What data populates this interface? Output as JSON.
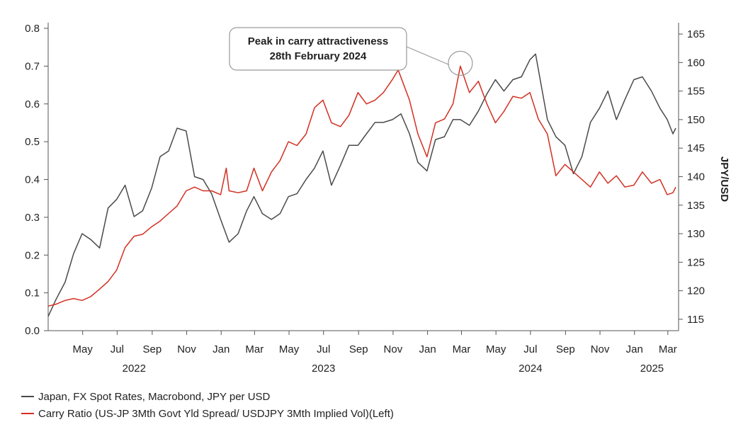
{
  "chart_data": {
    "type": "line",
    "xlabel": "",
    "ylabel_left": "",
    "ylabel_right": "JPY/USD",
    "ylim_left": [
      0,
      0.8
    ],
    "ylim_right": [
      113,
      166
    ],
    "yticks_left": [
      "0.0",
      "0.1",
      "0.2",
      "0.3",
      "0.4",
      "0.5",
      "0.6",
      "0.7",
      "0.8"
    ],
    "yticks_right": [
      "115",
      "120",
      "125",
      "130",
      "135",
      "140",
      "145",
      "150",
      "155",
      "160",
      "165"
    ],
    "xlim": [
      "2022-03-01",
      "2025-03-20"
    ],
    "month_ticks": [
      {
        "label": "May",
        "date": "2022-05-01"
      },
      {
        "label": "Jul",
        "date": "2022-07-01"
      },
      {
        "label": "Sep",
        "date": "2022-09-01"
      },
      {
        "label": "Nov",
        "date": "2022-11-01"
      },
      {
        "label": "Jan",
        "date": "2023-01-01"
      },
      {
        "label": "Mar",
        "date": "2023-03-01"
      },
      {
        "label": "May",
        "date": "2023-05-01"
      },
      {
        "label": "Jul",
        "date": "2023-07-01"
      },
      {
        "label": "Sep",
        "date": "2023-09-01"
      },
      {
        "label": "Nov",
        "date": "2023-11-01"
      },
      {
        "label": "Jan",
        "date": "2024-01-01"
      },
      {
        "label": "Mar",
        "date": "2024-03-01"
      },
      {
        "label": "May",
        "date": "2024-05-01"
      },
      {
        "label": "Jul",
        "date": "2024-07-01"
      },
      {
        "label": "Sep",
        "date": "2024-09-01"
      },
      {
        "label": "Nov",
        "date": "2024-11-01"
      },
      {
        "label": "Jan",
        "date": "2025-01-01"
      },
      {
        "label": "Mar",
        "date": "2025-03-01"
      }
    ],
    "year_labels": [
      {
        "label": "2022",
        "date": "2022-07-31"
      },
      {
        "label": "2023",
        "date": "2023-07-01"
      },
      {
        "label": "2024",
        "date": "2024-07-01"
      },
      {
        "label": "2025",
        "date": "2025-02-01"
      }
    ],
    "annotation": {
      "lines": [
        "Peak in carry attractiveness",
        "28th February 2024"
      ],
      "date": "2024-02-28",
      "value": 0.7
    },
    "series": [
      {
        "name": "Japan, FX Spot Rates, Macrobond, JPY per USD",
        "axis": "right",
        "color": "#4a4a4a",
        "points": [
          [
            "2022-03-01",
            115.5
          ],
          [
            "2022-03-15",
            118.5
          ],
          [
            "2022-03-31",
            121.5
          ],
          [
            "2022-04-15",
            126.5
          ],
          [
            "2022-04-30",
            130.0
          ],
          [
            "2022-05-15",
            129.0
          ],
          [
            "2022-05-31",
            127.5
          ],
          [
            "2022-06-15",
            134.5
          ],
          [
            "2022-06-30",
            136.0
          ],
          [
            "2022-07-15",
            138.5
          ],
          [
            "2022-07-31",
            133.0
          ],
          [
            "2022-08-15",
            134.0
          ],
          [
            "2022-08-31",
            138.0
          ],
          [
            "2022-09-15",
            143.5
          ],
          [
            "2022-09-30",
            144.5
          ],
          [
            "2022-10-15",
            148.5
          ],
          [
            "2022-10-31",
            148.0
          ],
          [
            "2022-11-15",
            140.0
          ],
          [
            "2022-11-30",
            139.5
          ],
          [
            "2022-12-15",
            137.0
          ],
          [
            "2022-12-31",
            132.5
          ],
          [
            "2023-01-15",
            128.5
          ],
          [
            "2023-01-31",
            130.0
          ],
          [
            "2023-02-15",
            134.0
          ],
          [
            "2023-02-28",
            136.5
          ],
          [
            "2023-03-15",
            133.5
          ],
          [
            "2023-03-31",
            132.5
          ],
          [
            "2023-04-15",
            133.5
          ],
          [
            "2023-04-30",
            136.5
          ],
          [
            "2023-05-15",
            137.0
          ],
          [
            "2023-05-31",
            139.5
          ],
          [
            "2023-06-15",
            141.5
          ],
          [
            "2023-06-30",
            144.5
          ],
          [
            "2023-07-15",
            138.5
          ],
          [
            "2023-07-31",
            142.0
          ],
          [
            "2023-08-15",
            145.5
          ],
          [
            "2023-08-31",
            145.5
          ],
          [
            "2023-09-15",
            147.5
          ],
          [
            "2023-09-30",
            149.5
          ],
          [
            "2023-10-15",
            149.5
          ],
          [
            "2023-10-31",
            150.0
          ],
          [
            "2023-11-15",
            151.0
          ],
          [
            "2023-11-30",
            147.5
          ],
          [
            "2023-12-15",
            142.5
          ],
          [
            "2023-12-31",
            141.0
          ],
          [
            "2024-01-15",
            146.5
          ],
          [
            "2024-01-31",
            147.0
          ],
          [
            "2024-02-15",
            150.0
          ],
          [
            "2024-02-28",
            150.0
          ],
          [
            "2024-03-15",
            149.0
          ],
          [
            "2024-03-31",
            151.5
          ],
          [
            "2024-04-15",
            154.5
          ],
          [
            "2024-04-30",
            157.0
          ],
          [
            "2024-05-15",
            155.0
          ],
          [
            "2024-05-31",
            157.0
          ],
          [
            "2024-06-15",
            157.5
          ],
          [
            "2024-06-30",
            160.5
          ],
          [
            "2024-07-10",
            161.5
          ],
          [
            "2024-07-31",
            150.0
          ],
          [
            "2024-08-15",
            147.0
          ],
          [
            "2024-08-31",
            145.5
          ],
          [
            "2024-09-15",
            140.5
          ],
          [
            "2024-09-30",
            143.5
          ],
          [
            "2024-10-15",
            149.5
          ],
          [
            "2024-10-31",
            152.0
          ],
          [
            "2024-11-15",
            155.0
          ],
          [
            "2024-11-30",
            150.0
          ],
          [
            "2024-12-15",
            153.5
          ],
          [
            "2024-12-31",
            157.0
          ],
          [
            "2025-01-15",
            157.5
          ],
          [
            "2025-01-31",
            155.0
          ],
          [
            "2025-02-15",
            152.0
          ],
          [
            "2025-02-28",
            150.0
          ],
          [
            "2025-03-10",
            147.5
          ],
          [
            "2025-03-15",
            148.5
          ]
        ]
      },
      {
        "name": "Carry Ratio (US-JP 3Mth Govt Yld Spread/ USDJPY 3Mth Implied Vol)(Left)",
        "axis": "left",
        "color": "#d32f22",
        "points": [
          [
            "2022-03-01",
            0.065
          ],
          [
            "2022-03-15",
            0.07
          ],
          [
            "2022-03-31",
            0.08
          ],
          [
            "2022-04-15",
            0.085
          ],
          [
            "2022-04-30",
            0.08
          ],
          [
            "2022-05-15",
            0.09
          ],
          [
            "2022-05-31",
            0.11
          ],
          [
            "2022-06-15",
            0.13
          ],
          [
            "2022-06-30",
            0.16
          ],
          [
            "2022-07-15",
            0.22
          ],
          [
            "2022-07-31",
            0.25
          ],
          [
            "2022-08-15",
            0.255
          ],
          [
            "2022-08-31",
            0.275
          ],
          [
            "2022-09-15",
            0.29
          ],
          [
            "2022-09-30",
            0.31
          ],
          [
            "2022-10-15",
            0.33
          ],
          [
            "2022-10-31",
            0.37
          ],
          [
            "2022-11-15",
            0.38
          ],
          [
            "2022-11-30",
            0.37
          ],
          [
            "2022-12-15",
            0.37
          ],
          [
            "2022-12-31",
            0.36
          ],
          [
            "2023-01-10",
            0.43
          ],
          [
            "2023-01-15",
            0.37
          ],
          [
            "2023-01-31",
            0.365
          ],
          [
            "2023-02-15",
            0.37
          ],
          [
            "2023-02-28",
            0.43
          ],
          [
            "2023-03-15",
            0.37
          ],
          [
            "2023-03-31",
            0.42
          ],
          [
            "2023-04-15",
            0.45
          ],
          [
            "2023-04-30",
            0.5
          ],
          [
            "2023-05-15",
            0.49
          ],
          [
            "2023-05-31",
            0.52
          ],
          [
            "2023-06-15",
            0.59
          ],
          [
            "2023-06-30",
            0.61
          ],
          [
            "2023-07-15",
            0.55
          ],
          [
            "2023-07-31",
            0.54
          ],
          [
            "2023-08-15",
            0.57
          ],
          [
            "2023-08-31",
            0.63
          ],
          [
            "2023-09-15",
            0.6
          ],
          [
            "2023-09-30",
            0.61
          ],
          [
            "2023-10-15",
            0.63
          ],
          [
            "2023-10-31",
            0.665
          ],
          [
            "2023-11-10",
            0.69
          ],
          [
            "2023-11-30",
            0.61
          ],
          [
            "2023-12-15",
            0.52
          ],
          [
            "2023-12-31",
            0.46
          ],
          [
            "2024-01-15",
            0.55
          ],
          [
            "2024-01-31",
            0.56
          ],
          [
            "2024-02-15",
            0.6
          ],
          [
            "2024-02-28",
            0.7
          ],
          [
            "2024-03-15",
            0.63
          ],
          [
            "2024-03-31",
            0.66
          ],
          [
            "2024-04-15",
            0.6
          ],
          [
            "2024-04-30",
            0.55
          ],
          [
            "2024-05-15",
            0.58
          ],
          [
            "2024-05-31",
            0.62
          ],
          [
            "2024-06-15",
            0.615
          ],
          [
            "2024-06-30",
            0.63
          ],
          [
            "2024-07-15",
            0.56
          ],
          [
            "2024-07-31",
            0.52
          ],
          [
            "2024-08-15",
            0.41
          ],
          [
            "2024-08-31",
            0.44
          ],
          [
            "2024-09-15",
            0.42
          ],
          [
            "2024-09-30",
            0.4
          ],
          [
            "2024-10-15",
            0.38
          ],
          [
            "2024-10-31",
            0.42
          ],
          [
            "2024-11-15",
            0.39
          ],
          [
            "2024-11-30",
            0.41
          ],
          [
            "2024-12-15",
            0.38
          ],
          [
            "2024-12-31",
            0.385
          ],
          [
            "2025-01-15",
            0.42
          ],
          [
            "2025-01-31",
            0.39
          ],
          [
            "2025-02-15",
            0.4
          ],
          [
            "2025-02-28",
            0.36
          ],
          [
            "2025-03-10",
            0.365
          ],
          [
            "2025-03-15",
            0.38
          ]
        ]
      }
    ]
  },
  "legend": {
    "items": [
      {
        "label": "Japan, FX Spot Rates, Macrobond, JPY per USD",
        "color": "#4a4a4a"
      },
      {
        "label": "Carry Ratio (US-JP 3Mth Govt Yld Spread/ USDJPY 3Mth Implied Vol)(Left)",
        "color": "#d32f22"
      }
    ]
  }
}
